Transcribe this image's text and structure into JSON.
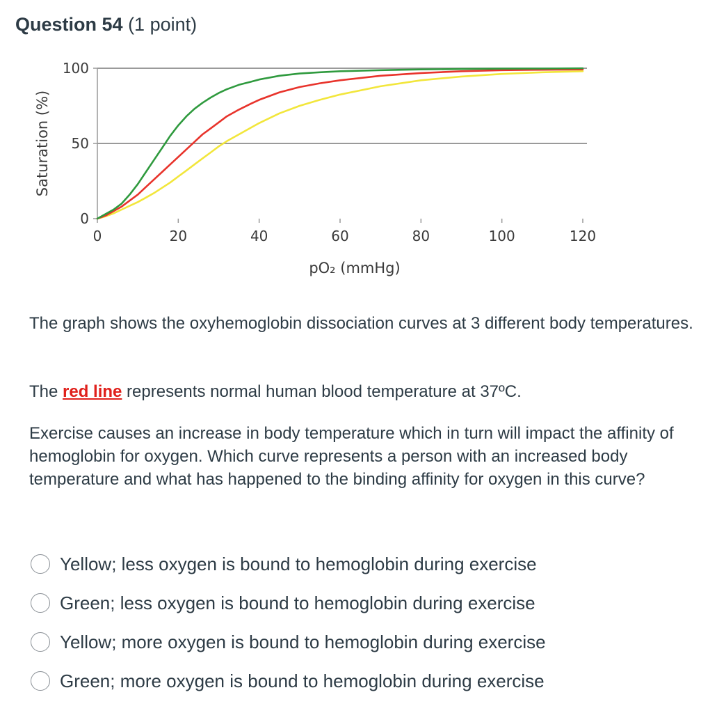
{
  "question": {
    "name": "Question 54",
    "points": "(1 point)"
  },
  "chart_data": {
    "type": "line",
    "xlabel": "pO₂ (mmHg)",
    "ylabel": "Saturation (%)",
    "xlim": [
      0,
      120
    ],
    "ylim": [
      0,
      100
    ],
    "xticks": [
      "0",
      "20",
      "40",
      "60",
      "80",
      "100",
      "120"
    ],
    "yticks": [
      "0",
      "50",
      "100"
    ],
    "grid": "horizontal at 50 and 100",
    "series": [
      {
        "name": "green",
        "color": "#2f9a3e",
        "x": [
          0,
          2,
          4,
          6,
          8,
          10,
          12,
          14,
          16,
          18,
          20,
          22,
          24,
          26,
          28,
          30,
          32,
          35,
          38,
          40,
          45,
          50,
          55,
          60,
          70,
          80,
          90,
          100,
          110,
          120
        ],
        "y": [
          0,
          3,
          6,
          10,
          16,
          23,
          31,
          39,
          47,
          55,
          62,
          68,
          73,
          77,
          80.5,
          83.5,
          86,
          89,
          91,
          92.5,
          95,
          96.5,
          97.3,
          98,
          98.7,
          99.2,
          99.5,
          99.7,
          99.8,
          100
        ]
      },
      {
        "name": "red",
        "color": "#e8332b",
        "x": [
          0,
          2,
          4,
          6,
          8,
          10,
          12,
          14,
          16,
          18,
          20,
          22,
          24,
          26,
          28,
          30,
          32,
          35,
          38,
          40,
          45,
          50,
          55,
          60,
          70,
          80,
          90,
          100,
          110,
          120
        ],
        "y": [
          0,
          2,
          5,
          8,
          12,
          16,
          21,
          26,
          31,
          36,
          41,
          46,
          51,
          56,
          60,
          64,
          68,
          72.5,
          76.5,
          79,
          84,
          87.5,
          90,
          92,
          95,
          96.8,
          98,
          98.7,
          99,
          99.2
        ]
      },
      {
        "name": "yellow",
        "color": "#f2e63b",
        "x": [
          0,
          2,
          4,
          6,
          8,
          10,
          12,
          14,
          16,
          18,
          20,
          22,
          24,
          26,
          28,
          30,
          32,
          35,
          38,
          40,
          45,
          50,
          55,
          60,
          70,
          80,
          90,
          100,
          110,
          120
        ],
        "y": [
          0,
          1.5,
          3.5,
          6,
          8.5,
          11,
          14,
          17,
          20.5,
          24,
          28,
          32,
          36,
          40,
          44,
          48,
          51.5,
          56,
          60.5,
          63.5,
          70,
          75,
          79,
          82.5,
          88,
          92,
          94.5,
          96.2,
          97.3,
          98
        ]
      }
    ]
  },
  "body": {
    "p1": "The graph shows the oxyhemoglobin dissociation curves at 3 different body temperatures.",
    "p2_before": "The ",
    "p2_link": "red line",
    "p2_after": " represents normal human blood temperature at 37ºC.",
    "p3": "Exercise causes an increase in body temperature which in turn will impact the affinity of hemoglobin for oxygen. Which curve represents a person with an increased body temperature and what has happened to the binding affinity for oxygen in this curve?"
  },
  "answers": [
    "Yellow; less oxygen is bound to hemoglobin during exercise",
    "Green; less oxygen is bound to hemoglobin during exercise",
    "Yellow; more oxygen is bound to hemoglobin during exercise",
    "Green; more oxygen is bound to hemoglobin during exercise"
  ]
}
